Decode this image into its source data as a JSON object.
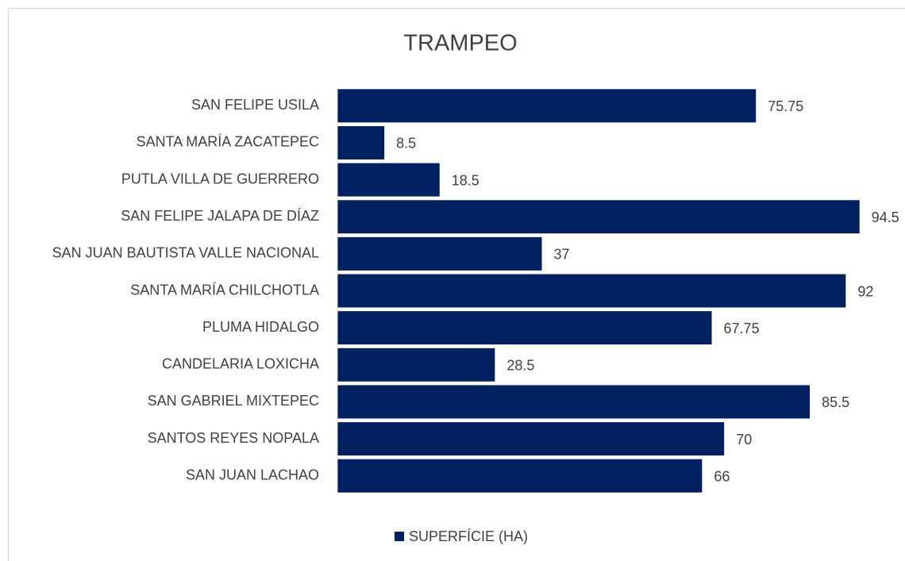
{
  "chart_data": {
    "type": "bar",
    "orientation": "horizontal",
    "title": "TRAMPEO",
    "categories": [
      "SAN FELIPE USILA",
      "SANTA MARÍA ZACATEPEC",
      "PUTLA VILLA DE GUERRERO",
      "SAN FELIPE JALAPA DE DÍAZ",
      "SAN JUAN BAUTISTA VALLE NACIONAL",
      "SANTA MARÍA CHILCHOTLA",
      "PLUMA HIDALGO",
      "CANDELARIA LOXICHA",
      "SAN GABRIEL MIXTEPEC",
      "SANTOS REYES NOPALA",
      "SAN JUAN LACHAO"
    ],
    "series": [
      {
        "name": "SUPERFÍCIE (HA)",
        "color": "#002060",
        "values": [
          75.75,
          8.5,
          18.5,
          94.5,
          37,
          92,
          67.75,
          28.5,
          85.5,
          70,
          66
        ]
      }
    ],
    "xlim": [
      0,
      100
    ],
    "legend": "bottom",
    "data_labels": true
  }
}
